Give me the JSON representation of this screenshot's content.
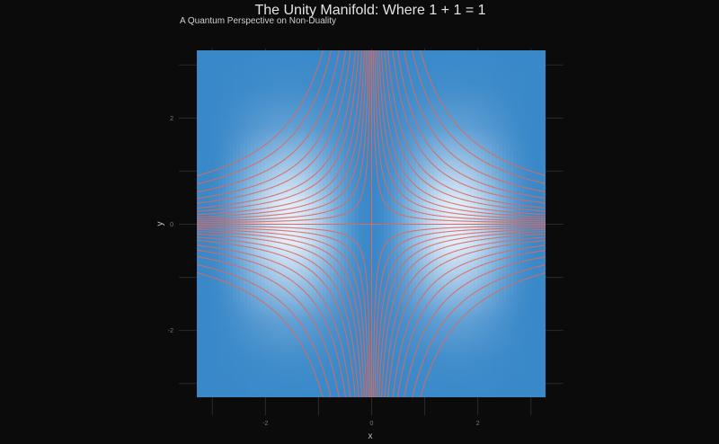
{
  "title": "The Unity Manifold: Where 1 + 1 = 1",
  "subtitle": "A Quantum Perspective on Non-Duality",
  "colors": {
    "background": "#0b0b0b",
    "grid": "#2a2a2a",
    "field_low": "#2a7fc4",
    "field_high": "#e6f0fb",
    "contour": "#d86a60"
  },
  "chart_data": {
    "type": "heatmap",
    "xlabel": "x",
    "ylabel": "y",
    "xlim": [
      -3.14,
      3.14
    ],
    "ylim": [
      -3.14,
      3.14
    ],
    "x_ticks": [
      -2,
      0,
      2
    ],
    "y_ticks": [
      -2,
      0,
      2
    ],
    "x_tick_labels": [
      "-2",
      "0",
      "2"
    ],
    "y_tick_labels": [
      "-2",
      "0",
      "2"
    ],
    "grid": true,
    "field": "brightness ~ sin^2(x) * exp(-y^2 / 2)",
    "contours": {
      "family": "x * y = c",
      "levels": [
        -3.0,
        -2.5,
        -2.0,
        -1.6,
        -1.3,
        -1.0,
        -0.8,
        -0.6,
        -0.45,
        -0.32,
        -0.2,
        -0.1,
        0,
        0.1,
        0.2,
        0.32,
        0.45,
        0.6,
        0.8,
        1.0,
        1.3,
        1.6,
        2.0,
        2.5,
        3.0
      ]
    }
  }
}
